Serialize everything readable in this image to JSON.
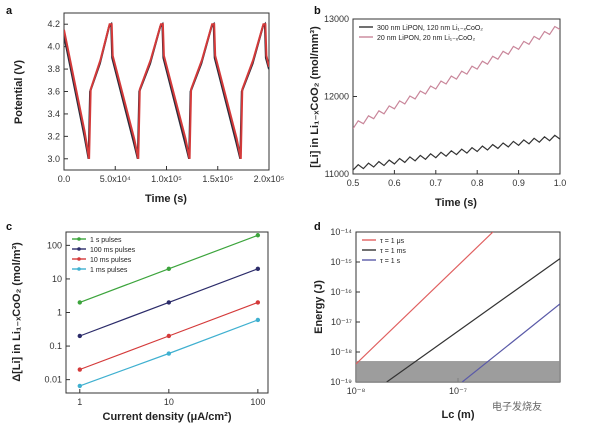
{
  "chart_data": [
    {
      "panel": "a",
      "type": "line",
      "xlabel": "Time (s)",
      "ylabel": "Potential (V)",
      "xlim": [
        0,
        200000
      ],
      "ylim": [
        2.9,
        4.3
      ],
      "xticks": [
        0,
        50000,
        100000,
        150000,
        200000
      ],
      "xtick_labels": [
        "0.0",
        "5.0x10⁴",
        "1.0x10⁵",
        "1.5x10⁵",
        "2.0x10⁵"
      ],
      "yticks": [
        3.0,
        3.2,
        3.4,
        3.6,
        3.8,
        4.0,
        4.2
      ],
      "ytick_labels": [
        "3.0",
        "3.2",
        "3.4",
        "3.6",
        "3.8",
        "4.0",
        "4.2"
      ],
      "series": [
        {
          "color": "#2b2b3a",
          "points": [
            [
              0,
              4.1
            ],
            [
              20000,
              3.2
            ],
            [
              24000,
              3.0
            ],
            [
              25500,
              3.6
            ],
            [
              35000,
              3.85
            ],
            [
              44000,
              4.18
            ],
            [
              46000,
              4.2
            ],
            [
              47000,
              3.9
            ],
            [
              68000,
              3.15
            ],
            [
              72000,
              3.0
            ],
            [
              73500,
              3.6
            ],
            [
              84000,
              3.85
            ],
            [
              94000,
              4.18
            ],
            [
              96000,
              4.2
            ],
            [
              97000,
              3.9
            ],
            [
              118000,
              3.15
            ],
            [
              122000,
              3.0
            ],
            [
              123500,
              3.6
            ],
            [
              134000,
              3.85
            ],
            [
              144000,
              4.18
            ],
            [
              146000,
              4.2
            ],
            [
              147000,
              3.9
            ],
            [
              168000,
              3.15
            ],
            [
              172000,
              3.0
            ],
            [
              173500,
              3.6
            ],
            [
              184000,
              3.85
            ],
            [
              194000,
              4.18
            ],
            [
              196000,
              4.2
            ],
            [
              197000,
              3.9
            ],
            [
              200000,
              3.8
            ]
          ]
        },
        {
          "color": "#d43a3a",
          "points": [
            [
              0,
              4.15
            ],
            [
              20000,
              3.25
            ],
            [
              24500,
              3.0
            ],
            [
              26000,
              3.62
            ],
            [
              35500,
              3.88
            ],
            [
              44500,
              4.2
            ],
            [
              46500,
              4.2
            ],
            [
              47500,
              3.92
            ],
            [
              68500,
              3.18
            ],
            [
              72500,
              3.0
            ],
            [
              74000,
              3.62
            ],
            [
              84500,
              3.88
            ],
            [
              94500,
              4.2
            ],
            [
              96500,
              4.2
            ],
            [
              97500,
              3.92
            ],
            [
              118500,
              3.18
            ],
            [
              122500,
              3.0
            ],
            [
              124000,
              3.62
            ],
            [
              134500,
              3.88
            ],
            [
              144500,
              4.2
            ],
            [
              146500,
              4.2
            ],
            [
              147500,
              3.92
            ],
            [
              168500,
              3.18
            ],
            [
              172500,
              3.0
            ],
            [
              174000,
              3.62
            ],
            [
              184500,
              3.88
            ],
            [
              194500,
              4.2
            ],
            [
              196500,
              4.2
            ],
            [
              197500,
              3.92
            ],
            [
              200000,
              3.82
            ]
          ]
        }
      ]
    },
    {
      "panel": "b",
      "type": "line",
      "xlabel": "Time (s)",
      "ylabel": "[Li] in Li₁₋ₓCoO₂ (mol/mm³)",
      "xlim": [
        0.5,
        1.0
      ],
      "ylim": [
        11000,
        13000
      ],
      "xticks": [
        0.5,
        0.6,
        0.7,
        0.8,
        0.9,
        1.0
      ],
      "xtick_labels": [
        "0.5",
        "0.6",
        "0.7",
        "0.8",
        "0.9",
        "1.0"
      ],
      "yticks": [
        11000,
        12000,
        13000
      ],
      "ytick_labels": [
        "11000",
        "12000",
        "13000"
      ],
      "legend": "top-left",
      "series": [
        {
          "name": "300 nm LiPON, 120 nm Li₁₋ₓCoO₂",
          "color": "#333333",
          "start": [
            0.5,
            11080
          ],
          "end": [
            1.0,
            11480
          ],
          "zigzag_amplitude": 60,
          "zigzag_cycles": 20
        },
        {
          "name": "20 nm LiPON, 20 nm Li₁₋ₓCoO₂",
          "color": "#c9869a",
          "start": [
            0.5,
            11620
          ],
          "end": [
            1.0,
            12900
          ],
          "zigzag_amplitude": 70,
          "zigzag_cycles": 20
        }
      ]
    },
    {
      "panel": "c",
      "type": "line",
      "xlabel": "Current density (μA/cm²)",
      "ylabel": "Δ[Li] in Li₁₋ₓCoO₂ (mol/m³)",
      "xscale": "log",
      "yscale": "log",
      "xlim": [
        0.7,
        130
      ],
      "ylim": [
        0.004,
        250
      ],
      "xticks": [
        1,
        10,
        100
      ],
      "xtick_labels": [
        "1",
        "10",
        "100"
      ],
      "yticks": [
        0.01,
        0.1,
        1,
        10,
        100
      ],
      "ytick_labels": [
        "0.01",
        "0.1",
        "1",
        "10",
        "100"
      ],
      "legend": "top-left",
      "series": [
        {
          "name": "1 s pulses",
          "color": "#3ca43c",
          "x": [
            1,
            10,
            100
          ],
          "y": [
            2,
            20,
            200
          ]
        },
        {
          "name": "100 ms pulses",
          "color": "#2c2c6a",
          "x": [
            1,
            10,
            100
          ],
          "y": [
            0.2,
            2,
            20
          ]
        },
        {
          "name": "10 ms pulses",
          "color": "#d43a3a",
          "x": [
            1,
            10,
            100
          ],
          "y": [
            0.02,
            0.2,
            2
          ]
        },
        {
          "name": "1 ms pulses",
          "color": "#3fb0d0",
          "x": [
            1,
            10,
            100
          ],
          "y": [
            0.0065,
            0.06,
            0.6
          ]
        }
      ]
    },
    {
      "panel": "d",
      "type": "line",
      "xlabel": "Lᴄ (m)",
      "ylabel": "Energy (J)",
      "xscale": "log",
      "yscale": "log",
      "xlim": [
        1e-08,
        1e-06
      ],
      "ylim": [
        1e-19,
        1e-14
      ],
      "xticks": [
        1e-08,
        1e-07
      ],
      "xtick_labels": [
        "10⁻⁸",
        "10⁻⁷"
      ],
      "yticks": [
        1e-19,
        1e-18,
        1e-17,
        1e-16,
        1e-15,
        1e-14
      ],
      "ytick_labels": [
        "10⁻¹⁹",
        "10⁻¹⁸",
        "10⁻¹⁷",
        "10⁻¹⁶",
        "10⁻¹⁵",
        "10⁻¹⁴"
      ],
      "legend": "top-left",
      "shaded_band": {
        "y_range": [
          1e-19,
          5e-19
        ],
        "color": "#8c8c8c"
      },
      "series": [
        {
          "name": "τ = 1 μs",
          "color": "#e06060",
          "x": [
            1e-08,
            2.2e-07
          ],
          "y": [
            4e-19,
            1e-14
          ]
        },
        {
          "name": "τ = 1 ms",
          "color": "#333333",
          "x": [
            2e-08,
            1e-06
          ],
          "y": [
            1e-19,
            1.3e-15
          ]
        },
        {
          "name": "τ = 1 s",
          "color": "#5a5aa8",
          "x": [
            1.1e-07,
            1e-06
          ],
          "y": [
            1e-19,
            4e-17
          ]
        }
      ]
    }
  ],
  "watermark": "电子发烧友"
}
